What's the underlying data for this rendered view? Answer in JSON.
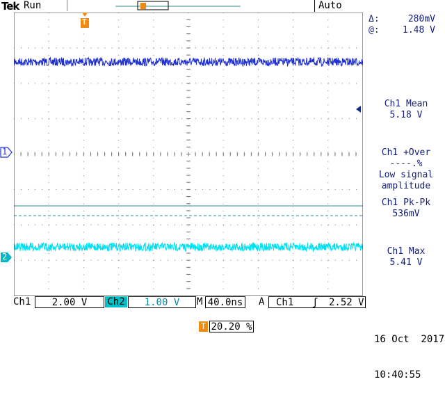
{
  "header": {
    "brand": "Tek",
    "run_state": "Run",
    "trigger_mode": "Auto"
  },
  "cursor_readout": {
    "delta_label": "Δ:",
    "delta_value": "280mV",
    "at_label": "@:",
    "at_value": "1.48 V"
  },
  "measurements": [
    {
      "title": "Ch1 Mean",
      "value": "5.18 V"
    },
    {
      "title": "Ch1 +Over",
      "value": "----.%",
      "note1": "Low signal",
      "note2": "amplitude"
    },
    {
      "title": "Ch1 Pk-Pk",
      "value": "536mV"
    },
    {
      "title": "Ch1 Max",
      "value": "5.41 V"
    }
  ],
  "markers": {
    "ch1": "1",
    "ch2": "2",
    "trigger": "T"
  },
  "footer": {
    "ch1_label": "Ch1",
    "ch1_scale": "2.00 V",
    "ch2_label": "Ch2",
    "ch2_scale": "1.00 V",
    "timebase_label": "M",
    "timebase": "40.0ns",
    "trigger_source_label": "A",
    "trigger_channel": "Ch1",
    "trigger_slope": "ʃ",
    "trigger_level": "2.52 V",
    "trigger_position": "20.20 %",
    "date": "16 Oct  2017",
    "time": "10:40:55"
  },
  "colors": {
    "ch1": "#1f2fd0",
    "ch2": "#00e0f0",
    "trigger": "#f08a10"
  }
}
